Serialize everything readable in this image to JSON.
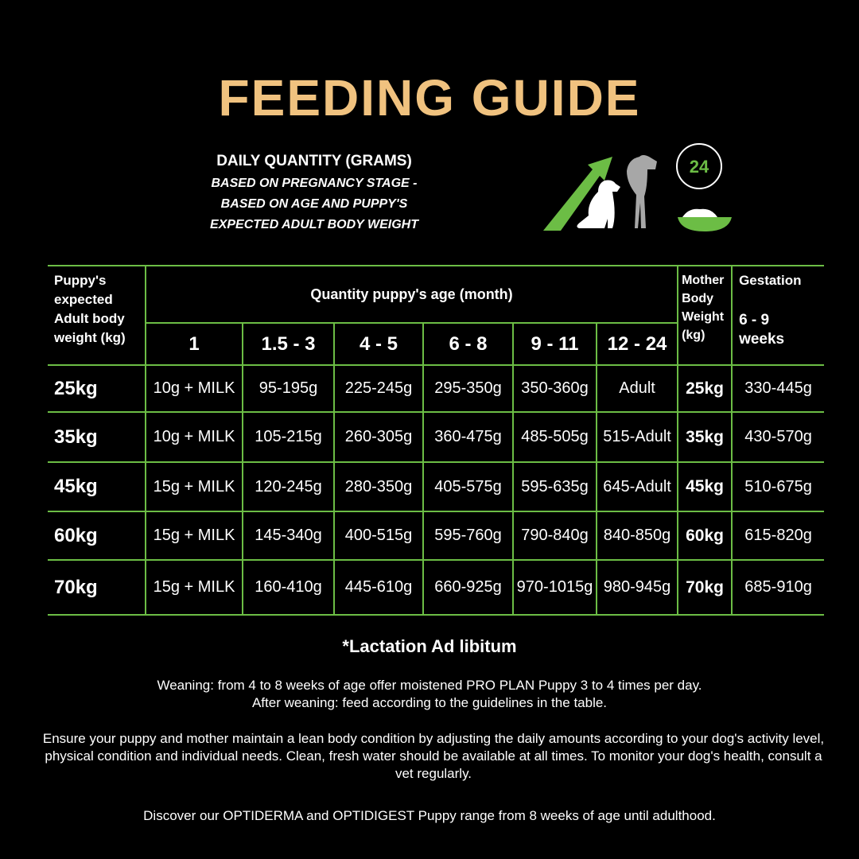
{
  "title": "FEEDING GUIDE",
  "subtitle": {
    "heading": "DAILY QUANTITY (GRAMS)",
    "line1": "BASED ON PREGNANCY STAGE -",
    "line2": "BASED ON AGE AND PUPPY'S",
    "line3": "EXPECTED ADULT BODY WEIGHT"
  },
  "icons": {
    "growth": "arrow-dogs-icon",
    "clock": "24",
    "bowl": "food-bowl-icon"
  },
  "colors": {
    "accent": "#6cbd45",
    "title": "#f0c27f"
  },
  "table": {
    "col0_header": "Puppy's expected Adult body weight (kg)",
    "group_header": "Quantity puppy's age (month)",
    "ages": [
      "1",
      "1.5 - 3",
      "4 - 5",
      "6 - 8",
      "9 - 11",
      "12 - 24"
    ],
    "mother_header": "Mother Body Weight (kg)",
    "gestation_header": "Gestation",
    "gestation_sub": "6 - 9 weeks",
    "rows": [
      {
        "weight": "25kg",
        "values": [
          "10g + MILK",
          "95-195g",
          "225-245g",
          "295-350g",
          "350-360g",
          "Adult"
        ],
        "mother": "25kg",
        "gestation": "330-445g"
      },
      {
        "weight": "35kg",
        "values": [
          "10g + MILK",
          "105-215g",
          "260-305g",
          "360-475g",
          "485-505g",
          "515-Adult"
        ],
        "mother": "35kg",
        "gestation": "430-570g"
      },
      {
        "weight": "45kg",
        "values": [
          "15g + MILK",
          "120-245g",
          "280-350g",
          "405-575g",
          "595-635g",
          "645-Adult"
        ],
        "mother": "45kg",
        "gestation": "510-675g"
      },
      {
        "weight": "60kg",
        "values": [
          "15g + MILK",
          "145-340g",
          "400-515g",
          "595-760g",
          "790-840g",
          "840-850g"
        ],
        "mother": "60kg",
        "gestation": "615-820g"
      },
      {
        "weight": "70kg",
        "values": [
          "15g + MILK",
          "160-410g",
          "445-610g",
          "660-925g",
          "970-1015g",
          "980-945g"
        ],
        "mother": "70kg",
        "gestation": "685-910g"
      }
    ]
  },
  "footer": {
    "lactation": "*Lactation Ad libitum",
    "weaning1": "Weaning: from 4 to 8 weeks of age offer moistened PRO PLAN Puppy 3 to 4 times per day.",
    "weaning2": "After weaning: feed according to the guidelines in the table.",
    "condition": "Ensure your puppy and mother maintain a lean body condition by adjusting the daily amounts according to your dog's activity level, physical condition and individual needs. Clean, fresh water should be available at all times. To monitor your dog's health, consult a vet regularly.",
    "discover": "Discover our OPTIDERMA and OPTIDIGEST Puppy range from 8 weeks of age until adulthood."
  }
}
